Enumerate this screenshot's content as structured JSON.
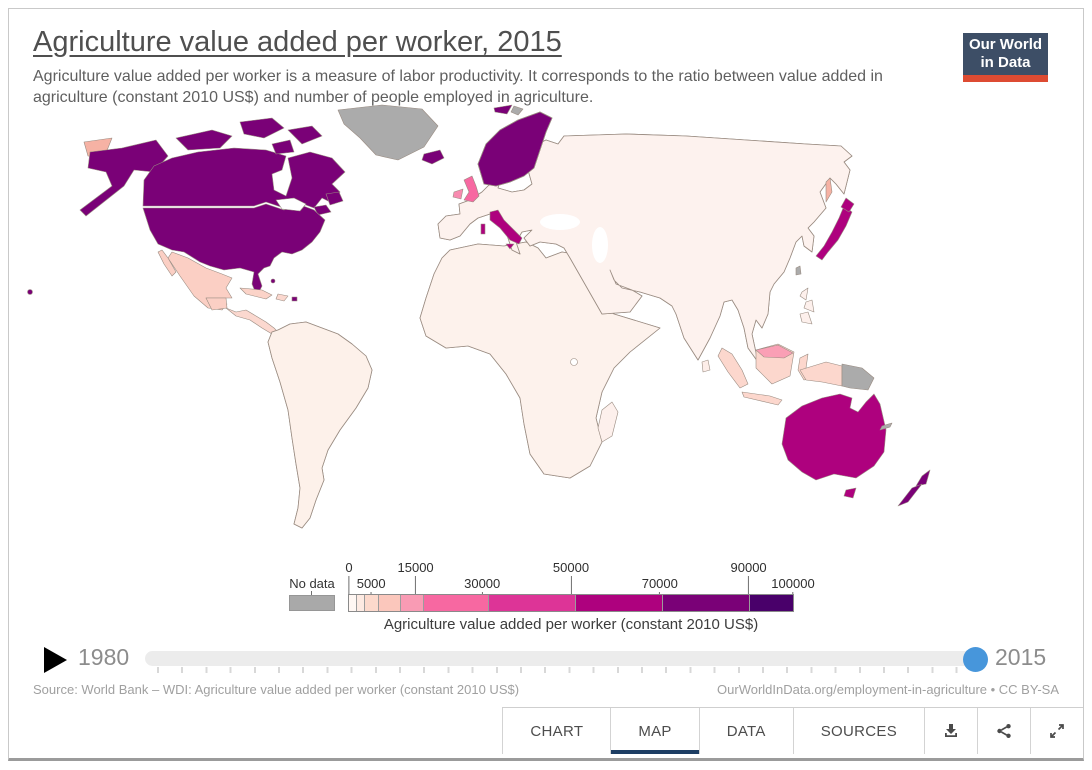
{
  "header": {
    "title": "Agriculture value added per worker, 2015",
    "subtitle": "Agriculture value added per worker is a measure of labor productivity. It corresponds to the ratio between value added in agriculture (constant 2010 US$) and number of people employed in agriculture.",
    "logo": {
      "line1": "Our World",
      "line2": "in Data",
      "bg_color": "#3d4e66",
      "bar_color": "#dd4b32"
    }
  },
  "legend": {
    "no_data_label": "No data",
    "no_data_color": "#a9a9a9",
    "title": "Agriculture value added per worker (constant 2010 US$)",
    "max": 100000,
    "ticks_top": [
      {
        "label": "0",
        "value": 0
      },
      {
        "label": "15000",
        "value": 15000
      },
      {
        "label": "50000",
        "value": 50000
      },
      {
        "label": "90000",
        "value": 90000
      }
    ],
    "ticks_bottom": [
      {
        "label": "5000",
        "value": 5000
      },
      {
        "label": "30000",
        "value": 30000
      },
      {
        "label": "70000",
        "value": 70000
      },
      {
        "label": "100000",
        "value": 100000
      }
    ],
    "bins": [
      {
        "min": 0,
        "max": 1000,
        "color": "#fff7f3"
      },
      {
        "min": 1000,
        "max": 2000,
        "color": "#fdeae2"
      },
      {
        "min": 2000,
        "max": 5000,
        "color": "#fcd9cc"
      },
      {
        "min": 5000,
        "max": 10000,
        "color": "#fbc7bc"
      },
      {
        "min": 10000,
        "max": 15000,
        "color": "#f99bb4"
      },
      {
        "min": 15000,
        "max": 30000,
        "color": "#f768a1"
      },
      {
        "min": 30000,
        "max": 50000,
        "color": "#dd3497"
      },
      {
        "min": 50000,
        "max": 70000,
        "color": "#ae017e"
      },
      {
        "min": 70000,
        "max": 90000,
        "color": "#7a0177"
      },
      {
        "min": 90000,
        "max": 100000,
        "color": "#49006a"
      }
    ]
  },
  "timeline": {
    "start_year": "1980",
    "end_year": "2015",
    "handle_color": "#4796db"
  },
  "footer": {
    "source": "Source: World Bank – WDI: Agriculture value added per worker (constant 2010 US$)",
    "license": "OurWorldInData.org/employment-in-agriculture • CC BY-SA"
  },
  "tabs": {
    "active_color": "#1d3d63",
    "items": [
      {
        "label": "CHART",
        "active": false
      },
      {
        "label": "MAP",
        "active": true
      },
      {
        "label": "DATA",
        "active": false
      },
      {
        "label": "SOURCES",
        "active": false
      }
    ]
  },
  "map": {
    "ocean_color": "#ffffff",
    "border_color": "#9a8c82",
    "countries": {
      "usa": "#7a0177",
      "canada": "#7a0177",
      "greenland": "#ababab",
      "iceland": "#7a0177",
      "mexico": "#fbcfc4",
      "central-america": "#fbd8cf",
      "cuba": "#fbd3c8",
      "hispaniola": "#fbd8cf",
      "puerto-rico": "#7a0177",
      "bahamas": "#7a0177",
      "sa-base": "#fdf1ea",
      "colombia": "#fbc7bc",
      "venezuela": "#f768a1",
      "guyana": "#fbd3c8",
      "suriname": "#ababab",
      "ecuador": "#fbd3c8",
      "peru": "#fdeee8",
      "brazil": "#f9c0b2",
      "bolivia": "#fdf4f0",
      "paraguay": "#fbd8cf",
      "uruguay": "#fbd3c8",
      "chile": "#fbcfc9",
      "argentina": "#f768a1",
      "eurasia-base": "#fdf2ee",
      "scandinavia-base": "#7a0177",
      "norway": "#49006a",
      "sweden": "#7a0177",
      "finland": "#7a0177",
      "denmark": "#49006a",
      "netherlands": "#49006a",
      "germany": "#e8539f",
      "poland": "#fdd9d3",
      "baltics": "#f88bb0",
      "belarus": "#fa9fb5",
      "ukraine": "#fcd9cc",
      "france": "#3d0055",
      "spain": "#d02a8d",
      "portugal": "#e8539f",
      "switzerland": "#49006a",
      "austria": "#ae017e",
      "czechia": "#fbd0c6",
      "hungary": "#fbd0c6",
      "romania": "#f9c4b6",
      "bulgaria": "#f9c0b8",
      "serbia": "#fbd0c6",
      "croatia": "#ae017e",
      "greece": "#f768a1",
      "italy": "#ae017e",
      "sardinia": "#ae017e",
      "uk": "#f768a1",
      "ireland": "#f88bb0",
      "svalbard": "#7a0177",
      "svalbard-east": "#ababab",
      "russia": "#f6b2a4",
      "kazakhstan": "#fdeee9",
      "turkmenistan": "#ababab",
      "uzbekistan": "#fdeae2",
      "kyrgyzstan": "#fbd0c6",
      "mongolia": "#fbd4cc",
      "china": "#fdf2ee",
      "north-korea": "#ababab",
      "south-korea": "#f768a1",
      "japan": "#ae017e",
      "taiwan": "#ababab",
      "turkey": "#f6b3a6",
      "syria": "#ababab",
      "iraq": "#f6aca0",
      "iran": "#fdece5",
      "saudi-arabia": "#d62d8c",
      "yemen": "#fdf0ea",
      "oman": "#f6a89b",
      "jordan": "#f6b3a6",
      "israel": "#49006a",
      "caucasus": "#fbd0c6",
      "afghanistan": "#fdebe4",
      "pakistan": "#fbd0c4",
      "india": "#fdf0ec",
      "nepal": "#fdeae2",
      "bangladesh": "#fdeae2",
      "sri-lanka": "#fdeee9",
      "myanmar": "#fdeee8",
      "thailand": "#fbd8d0",
      "laos-vietnam": "#fdeae2",
      "cambodia": "#fdf0ea",
      "malaysia": "#fa9fb5",
      "indonesia": "#fcd7cd",
      "philipp": "#fdf0ec",
      "papua-new-guinea": "#ababab",
      "africa-base": "#fdf2ec",
      "morocco": "#f585ae",
      "western-sahara": "#ababab",
      "algeria": "#f8c3b5",
      "tunisia": "#f8c3b5",
      "libya": "#ababab",
      "egypt": "#f6b3a6",
      "mauritania": "#fdf0ea",
      "mali": "#fdf0ea",
      "niger": "#fdf2ec",
      "chad": "#fdeee8",
      "sudan": "#fbd3c6",
      "south-sudan": "#ababab",
      "eritrea": "#ababab",
      "ethiopia": "#fdf0ec",
      "somalia": "#ababab",
      "senegal": "#fdf0ea",
      "sierra-leone": "#ababab",
      "ghana-cote": "#fdeee9",
      "nigeria": "#f9c0b4",
      "cameroon": "#fdeae4",
      "central-african-republic": "#fdf2ee",
      "drc": "#fdf4f0",
      "gabon-congo": "#fbd3c9",
      "uganda-kenya": "#fdf2ee",
      "tanzania": "#fdf0ec",
      "angola": "#ababab",
      "zambia": "#fdf2ee",
      "mozambique": "#fdf2ee",
      "zimbabwe": "#fbd8ce",
      "namibia": "#fbd3c8",
      "botswana": "#fdf2ee",
      "south-africa": "#f8b3a9",
      "madagascar": "#fdf0ec",
      "australia": "#ae017e",
      "new-zealand": "#7a0177",
      "new-caledonia": "#ababab"
    }
  }
}
